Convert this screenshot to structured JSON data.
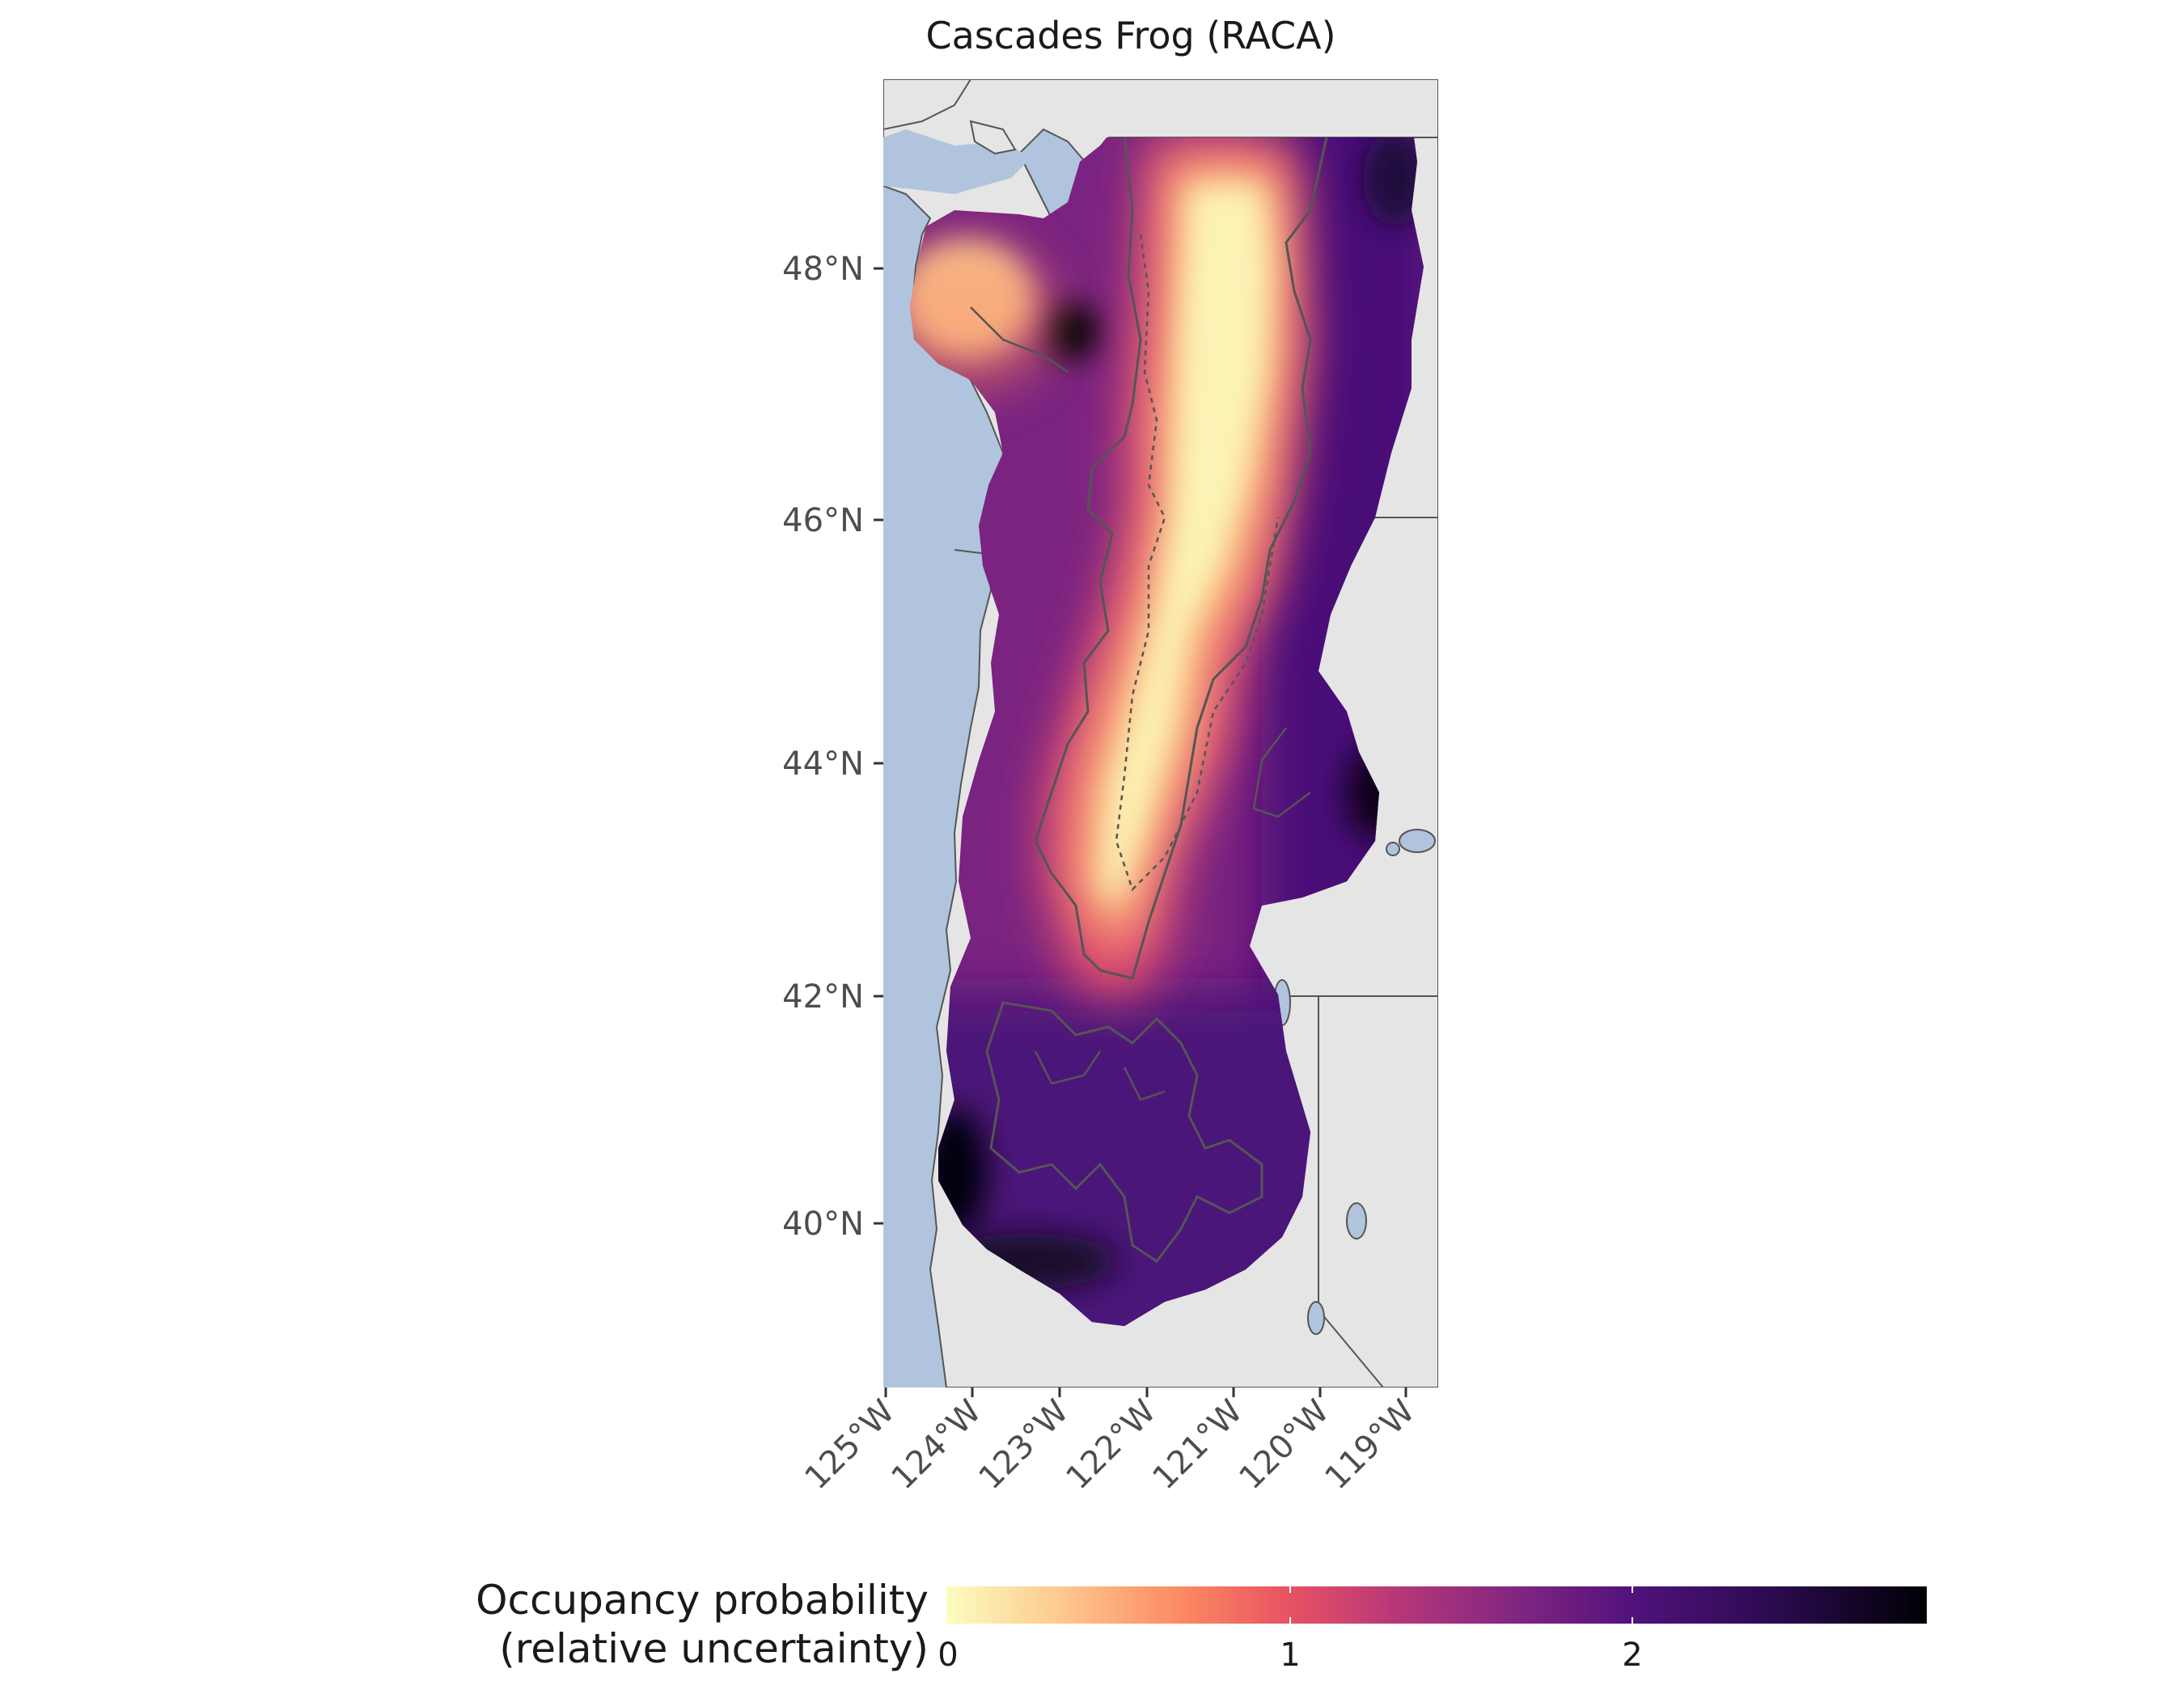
{
  "figure": {
    "title": "Cascades Frog (RACA)"
  },
  "axes": {
    "lat_ticks": [
      "48°N",
      "46°N",
      "44°N",
      "42°N",
      "40°N"
    ],
    "lon_ticks": [
      "125°W",
      "124°W",
      "123°W",
      "122°W",
      "121°W",
      "120°W",
      "119°W"
    ]
  },
  "legend": {
    "title_line1": "Occupancy probability",
    "title_line2": "(relative uncertainty)",
    "ticks": [
      "0",
      "1",
      "2"
    ],
    "position": "bottom"
  },
  "colors": {
    "ocean": "#b0c4de",
    "land": "#e5e5e5",
    "border": "#555555",
    "range_outline": "#555555",
    "scale": [
      "#fcfdbf",
      "#fdc78d",
      "#fc8961",
      "#e75263",
      "#b73779",
      "#822681",
      "#51127c",
      "#3b0f70",
      "#000004"
    ]
  }
}
